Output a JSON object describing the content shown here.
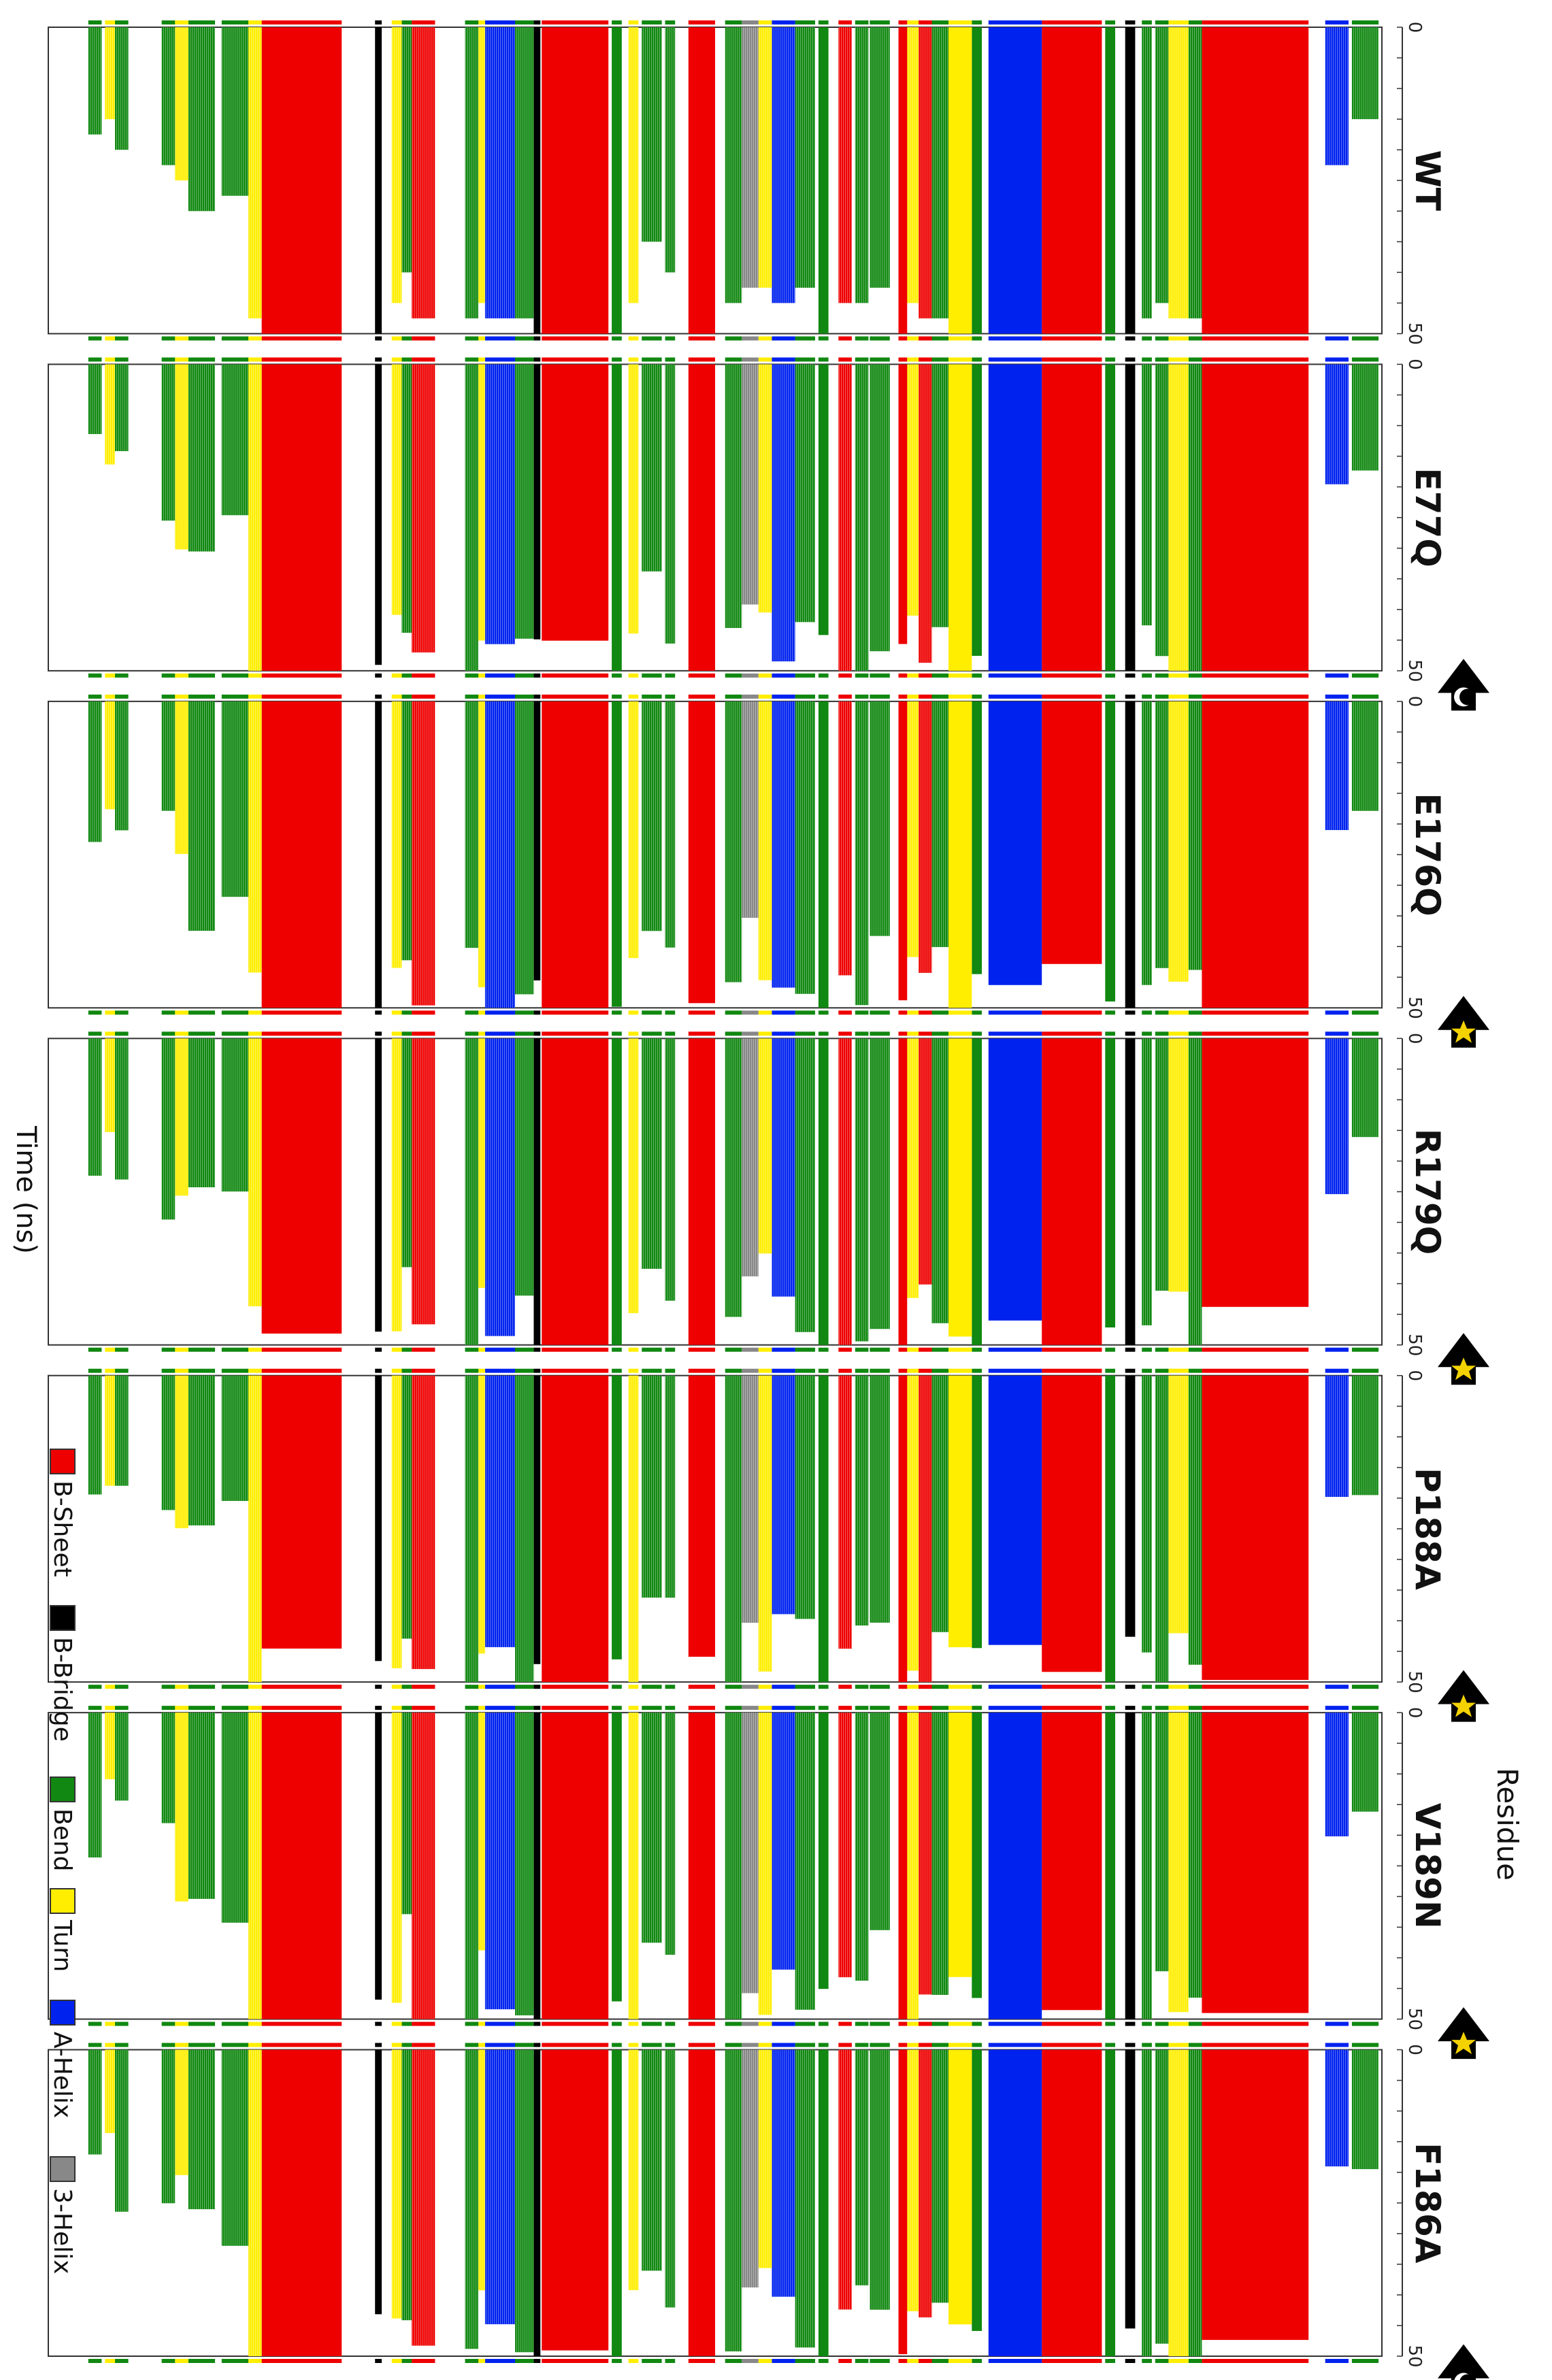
{
  "figure": {
    "axis_title_time": "Time (ns)",
    "axis_title_residue": "Residue",
    "rotation": "figure rotated 90 degrees clockwise"
  },
  "chart_data": {
    "type": "heatmap",
    "description_kind": "DSSP secondary-structure timeline per residue",
    "x_axis": {
      "label": "Time (ns)",
      "range": [
        0,
        50
      ],
      "ticks": [
        "0",
        "50"
      ]
    },
    "y_axis": {
      "label": "Residue"
    },
    "legend": [
      {
        "label": "B-Sheet",
        "color": "#ee0000"
      },
      {
        "label": "B-Bridge",
        "color": "#000000"
      },
      {
        "label": "Bend",
        "color": "#118811"
      },
      {
        "label": "Turn",
        "color": "#ffee00"
      },
      {
        "label": "A-Helix",
        "color": "#0022ee"
      },
      {
        "label": "3-Helix",
        "color": "#888888"
      }
    ],
    "panels": [
      {
        "name": "WT",
        "marker": "none"
      },
      {
        "name": "E77Q",
        "marker": "moon"
      },
      {
        "name": "E176Q",
        "marker": "star"
      },
      {
        "name": "R179Q",
        "marker": "star"
      },
      {
        "name": "P188A",
        "marker": "star"
      },
      {
        "name": "V189N",
        "marker": "star"
      },
      {
        "name": "F186A",
        "marker": "moon"
      }
    ],
    "residue_bands": [
      {
        "start": 0.005,
        "end": 0.045,
        "ss": "Bend",
        "fill": 0.3
      },
      {
        "start": 0.05,
        "end": 0.085,
        "ss": "A-Helix",
        "fill": 0.45
      },
      {
        "start": 0.11,
        "end": 0.27,
        "ss": "B-Sheet",
        "fill": 1.0
      },
      {
        "start": 0.27,
        "end": 0.29,
        "ss": "Bend",
        "fill": 0.95
      },
      {
        "start": 0.29,
        "end": 0.32,
        "ss": "Turn",
        "fill": 0.95
      },
      {
        "start": 0.32,
        "end": 0.34,
        "ss": "Bend",
        "fill": 0.9
      },
      {
        "start": 0.345,
        "end": 0.36,
        "ss": "Bend",
        "fill": 0.95
      },
      {
        "start": 0.37,
        "end": 0.385,
        "ss": "B-Bridge",
        "fill": 1.0
      },
      {
        "start": 0.4,
        "end": 0.415,
        "ss": "Bend",
        "fill": 1.0
      },
      {
        "start": 0.42,
        "end": 0.51,
        "ss": "B-Sheet",
        "fill": 1.0
      },
      {
        "start": 0.51,
        "end": 0.59,
        "ss": "A-Helix",
        "fill": 1.0
      },
      {
        "start": 0.6,
        "end": 0.615,
        "ss": "Bend",
        "fill": 1.0
      },
      {
        "start": 0.615,
        "end": 0.65,
        "ss": "Turn",
        "fill": 1.0
      },
      {
        "start": 0.65,
        "end": 0.675,
        "ss": "Bend",
        "fill": 0.95
      },
      {
        "start": 0.675,
        "end": 0.695,
        "ss": "B-Sheet",
        "fill": 0.95
      },
      {
        "start": 0.695,
        "end": 0.712,
        "ss": "Turn",
        "fill": 0.9
      },
      {
        "start": 0.712,
        "end": 0.725,
        "ss": "B-Sheet",
        "fill": 1.0
      },
      {
        "start": 0.738,
        "end": 0.768,
        "ss": "Bend",
        "fill": 0.85
      },
      {
        "start": 0.77,
        "end": 0.79,
        "ss": "Bend",
        "fill": 0.9
      },
      {
        "start": 0.795,
        "end": 0.815,
        "ss": "B-Sheet",
        "fill": 0.9
      },
      {
        "start": 0.83,
        "end": 0.845,
        "ss": "Bend",
        "fill": 1.0
      },
      {
        "start": 0.85,
        "end": 0.88,
        "ss": "Bend",
        "fill": 0.85
      },
      {
        "start": 0.88,
        "end": 0.915,
        "ss": "A-Helix",
        "fill": 0.9
      },
      {
        "start": 0.915,
        "end": 0.935,
        "ss": "Turn",
        "fill": 0.85
      },
      {
        "start": 0.935,
        "end": 0.96,
        "ss": "3-Helix",
        "fill": 0.85
      },
      {
        "start": 0.96,
        "end": 0.985,
        "ss": "Bend",
        "fill": 0.9
      },
      {
        "start": 1.0,
        "end": 1.04,
        "ss": "B-Sheet",
        "fill": 1.0
      },
      {
        "start": 1.06,
        "end": 1.075,
        "ss": "Bend",
        "fill": 0.8
      },
      {
        "start": 1.08,
        "end": 1.11,
        "ss": "Bend",
        "fill": 0.7
      },
      {
        "start": 1.115,
        "end": 1.13,
        "ss": "Turn",
        "fill": 0.9
      },
      {
        "start": 1.14,
        "end": 1.155,
        "ss": "Bend",
        "fill": 1.0
      },
      {
        "start": 1.16,
        "end": 1.26,
        "ss": "B-Sheet",
        "fill": 1.0
      },
      {
        "start": 1.262,
        "end": 1.272,
        "ss": "B-Bridge",
        "fill": 1.0
      },
      {
        "start": 1.272,
        "end": 1.3,
        "ss": "Bend",
        "fill": 0.95
      },
      {
        "start": 1.3,
        "end": 1.345,
        "ss": "A-Helix",
        "fill": 0.95
      },
      {
        "start": 1.345,
        "end": 1.355,
        "ss": "Turn",
        "fill": 0.9
      },
      {
        "start": 1.355,
        "end": 1.375,
        "ss": "Bend",
        "fill": 0.95
      },
      {
        "start": 1.42,
        "end": 1.455,
        "ss": "B-Sheet",
        "fill": 0.95
      },
      {
        "start": 1.455,
        "end": 1.47,
        "ss": "Bend",
        "fill": 0.8
      },
      {
        "start": 1.47,
        "end": 1.485,
        "ss": "Turn",
        "fill": 0.9
      },
      {
        "start": 1.5,
        "end": 1.51,
        "ss": "B-Bridge",
        "fill": 1.0
      },
      {
        "start": 1.56,
        "end": 1.68,
        "ss": "B-Sheet",
        "fill": 1.0
      },
      {
        "start": 1.68,
        "end": 1.7,
        "ss": "Turn",
        "fill": 0.95
      },
      {
        "start": 1.7,
        "end": 1.74,
        "ss": "Bend",
        "fill": 0.55
      },
      {
        "start": 1.75,
        "end": 1.79,
        "ss": "Bend",
        "fill": 0.6
      },
      {
        "start": 1.79,
        "end": 1.81,
        "ss": "Turn",
        "fill": 0.5
      },
      {
        "start": 1.81,
        "end": 1.83,
        "ss": "Bend",
        "fill": 0.45
      },
      {
        "start": 1.88,
        "end": 1.9,
        "ss": "Bend",
        "fill": 0.4
      },
      {
        "start": 1.9,
        "end": 1.915,
        "ss": "Turn",
        "fill": 0.3
      },
      {
        "start": 1.92,
        "end": 1.94,
        "ss": "Bend",
        "fill": 0.35
      }
    ],
    "y_axis_units": "residue position as fraction of protein length (0 = C-terminus side, 2 = N-terminus side, arbitrary scale)"
  }
}
